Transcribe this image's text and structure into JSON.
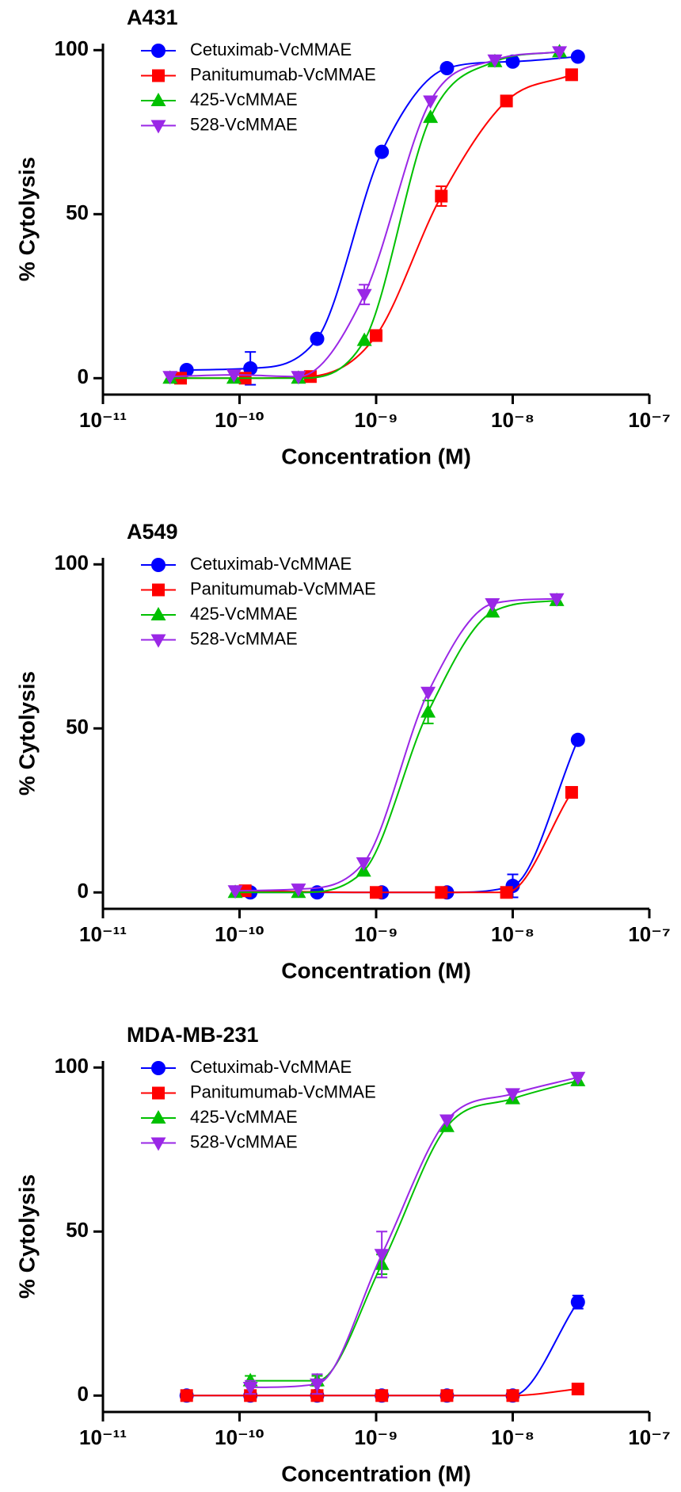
{
  "chart_data": [
    {
      "type": "line",
      "title": "A431",
      "xlabel": "Concentration (M)",
      "ylabel": "% Cytolysis",
      "xscale": "log",
      "xlim": [
        1e-11,
        1e-07
      ],
      "xticks": [
        {
          "value": 1e-11,
          "label": "10⁻¹¹"
        },
        {
          "value": 1e-10,
          "label": "10⁻¹⁰"
        },
        {
          "value": 1e-09,
          "label": "10⁻⁹"
        },
        {
          "value": 1e-08,
          "label": "10⁻⁸"
        },
        {
          "value": 1e-07,
          "label": "10⁻⁷"
        }
      ],
      "ylim": [
        -5,
        102
      ],
      "yticks": [
        0,
        50,
        100
      ],
      "legend": "upper left",
      "series": [
        {
          "name": "Cetuximab-VcMMAE",
          "color": "#0000ff",
          "marker": "o",
          "x": [
            4.1e-11,
            1.2e-10,
            3.7e-10,
            1.1e-09,
            3.3e-09,
            1e-08,
            3e-08
          ],
          "values": [
            2.5,
            3,
            12,
            69,
            94.5,
            96.5,
            98
          ],
          "errors": [
            null,
            5,
            null,
            null,
            null,
            null,
            null
          ]
        },
        {
          "name": "Panitumumab-VcMMAE",
          "color": "#ff0000",
          "marker": "s",
          "x": [
            3.7e-11,
            1.1e-10,
            3.3e-10,
            1e-09,
            3e-09,
            9e-09,
            2.7e-08
          ],
          "values": [
            0,
            0,
            0.5,
            13,
            55.5,
            84.5,
            92.5
          ],
          "errors": [
            null,
            null,
            null,
            null,
            3,
            null,
            null
          ]
        },
        {
          "name": "425-VcMMAE",
          "color": "#00c000",
          "marker": "^",
          "x": [
            3.1e-11,
            9.1e-11,
            2.7e-10,
            8.2e-10,
            2.5e-09,
            7.4e-09,
            2.2e-08
          ],
          "values": [
            0,
            0,
            0,
            11.5,
            79.5,
            96.5,
            99.5
          ],
          "errors": [
            null,
            null,
            null,
            null,
            null,
            null,
            null
          ]
        },
        {
          "name": "528-VcMMAE",
          "color": "#9a27e6",
          "marker": "v",
          "x": [
            3.1e-11,
            9.1e-11,
            2.7e-10,
            8.2e-10,
            2.5e-09,
            7.4e-09,
            2.2e-08
          ],
          "values": [
            0.5,
            1,
            0.5,
            25.5,
            84.5,
            97,
            99.5
          ],
          "errors": [
            null,
            null,
            null,
            3,
            null,
            null,
            null
          ]
        }
      ]
    },
    {
      "type": "line",
      "title": "A549",
      "xlabel": "Concentration (M)",
      "ylabel": "% Cytolysis",
      "xscale": "log",
      "xlim": [
        1e-11,
        1e-07
      ],
      "xticks": [
        {
          "value": 1e-11,
          "label": "10⁻¹¹"
        },
        {
          "value": 1e-10,
          "label": "10⁻¹⁰"
        },
        {
          "value": 1e-09,
          "label": "10⁻⁹"
        },
        {
          "value": 1e-08,
          "label": "10⁻⁸"
        },
        {
          "value": 1e-07,
          "label": "10⁻⁷"
        }
      ],
      "ylim": [
        -5,
        102
      ],
      "yticks": [
        0,
        50,
        100
      ],
      "legend": "upper left",
      "series": [
        {
          "name": "Cetuximab-VcMMAE",
          "color": "#0000ff",
          "marker": "o",
          "x": [
            1.2e-10,
            3.7e-10,
            1.1e-09,
            3.3e-09,
            1e-08,
            3e-08
          ],
          "values": [
            0,
            0,
            0,
            0,
            2,
            46.5
          ],
          "errors": [
            null,
            null,
            null,
            null,
            3.5,
            null
          ]
        },
        {
          "name": "Panitumumab-VcMMAE",
          "color": "#ff0000",
          "marker": "s",
          "x": [
            1.1e-10,
            1e-09,
            3e-09,
            9e-09,
            2.7e-08
          ],
          "values": [
            0.5,
            0,
            0,
            0,
            30.5
          ],
          "errors": [
            null,
            null,
            null,
            null,
            null
          ]
        },
        {
          "name": "425-VcMMAE",
          "color": "#00c000",
          "marker": "^",
          "x": [
            9.3e-11,
            2.7e-10,
            8.1e-10,
            2.4e-09,
            7.1e-09,
            2.1e-08
          ],
          "values": [
            0,
            0,
            6.5,
            55,
            85.5,
            89
          ],
          "errors": [
            null,
            null,
            null,
            3.5,
            null,
            null
          ]
        },
        {
          "name": "528-VcMMAE",
          "color": "#9a27e6",
          "marker": "v",
          "x": [
            9.3e-11,
            2.7e-10,
            8.1e-10,
            2.4e-09,
            7.1e-09,
            2.1e-08
          ],
          "values": [
            0.5,
            1,
            9,
            61,
            88,
            89.5
          ],
          "errors": [
            null,
            null,
            null,
            null,
            null,
            null
          ]
        }
      ]
    },
    {
      "type": "line",
      "title": "MDA-MB-231",
      "xlabel": "Concentration (M)",
      "ylabel": "% Cytolysis",
      "xscale": "log",
      "xlim": [
        1e-11,
        1e-07
      ],
      "xticks": [
        {
          "value": 1e-11,
          "label": "10⁻¹¹"
        },
        {
          "value": 1e-10,
          "label": "10⁻¹⁰"
        },
        {
          "value": 1e-09,
          "label": "10⁻⁹"
        },
        {
          "value": 1e-08,
          "label": "10⁻⁸"
        },
        {
          "value": 1e-07,
          "label": "10⁻⁷"
        }
      ],
      "ylim": [
        -5,
        102
      ],
      "yticks": [
        0,
        50,
        100
      ],
      "legend": "upper left",
      "series": [
        {
          "name": "Cetuximab-VcMMAE",
          "color": "#0000ff",
          "marker": "o",
          "x": [
            4.1e-11,
            1.2e-10,
            3.7e-10,
            1.1e-09,
            3.3e-09,
            1e-08,
            3e-08
          ],
          "values": [
            0,
            0,
            0,
            0,
            0,
            0,
            28.5
          ],
          "errors": [
            null,
            null,
            null,
            null,
            null,
            null,
            2
          ]
        },
        {
          "name": "Panitumumab-VcMMAE",
          "color": "#ff0000",
          "marker": "s",
          "x": [
            4.1e-11,
            1.2e-10,
            3.7e-10,
            1.1e-09,
            3.3e-09,
            1e-08,
            3e-08
          ],
          "values": [
            0,
            0,
            0,
            0,
            0,
            0,
            2
          ],
          "errors": [
            null,
            null,
            null,
            null,
            null,
            null,
            null
          ]
        },
        {
          "name": "425-VcMMAE",
          "color": "#00c000",
          "marker": "^",
          "x": [
            1.2e-10,
            3.7e-10,
            1.1e-09,
            3.3e-09,
            1e-08,
            3e-08
          ],
          "values": [
            4.5,
            4.5,
            40,
            82,
            90.5,
            96
          ],
          "errors": [
            1.5,
            1.5,
            3,
            null,
            null,
            null
          ]
        },
        {
          "name": "528-VcMMAE",
          "color": "#9a27e6",
          "marker": "v",
          "x": [
            1.2e-10,
            3.7e-10,
            1.1e-09,
            3.3e-09,
            1e-08,
            3e-08
          ],
          "values": [
            2.5,
            3.5,
            43,
            84,
            92,
            97
          ],
          "errors": [
            2,
            3,
            7,
            null,
            null,
            null
          ]
        }
      ]
    }
  ]
}
